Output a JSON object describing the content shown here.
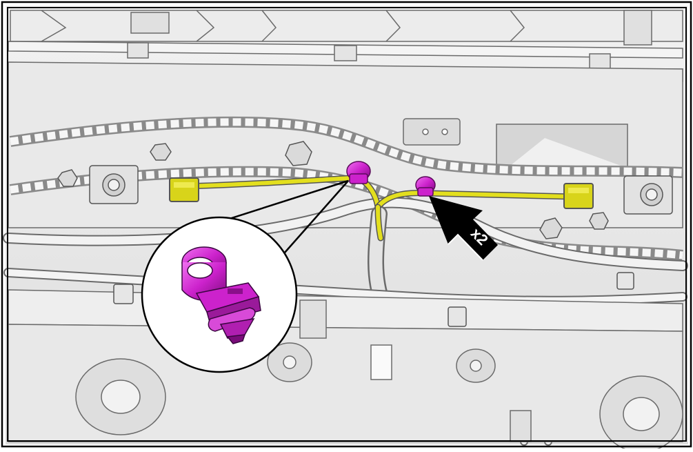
{
  "diagram": {
    "callout": {
      "quantity_label": "x2",
      "arrow_color": "#000000"
    },
    "colors": {
      "background_part": "#e6e6e6",
      "outline": "#5a5a5a",
      "wire_highlight": "#e3df1e",
      "connector": "#d8d41a",
      "clip_highlight": "#cc22cc",
      "clip_dark": "#8a0f8a",
      "frame": "#000000"
    },
    "icons": {
      "detail_view": "push-pin-clip-icon",
      "pointer": "callout-arrow-icon"
    }
  }
}
